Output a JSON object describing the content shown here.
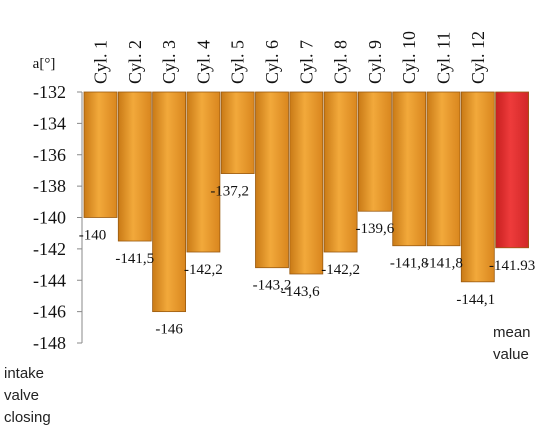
{
  "chart_data": {
    "type": "bar",
    "ylabel": "a[°]",
    "categories": [
      "Cyl. 1",
      "Cyl. 2",
      "Cyl. 3",
      "Cyl. 4",
      "Cyl. 5",
      "Cyl. 6",
      "Cyl. 7",
      "Cyl. 8",
      "Cyl. 9",
      "Cyl. 10",
      "Cyl. 11",
      "Cyl. 12",
      ""
    ],
    "values": [
      -140,
      -141.5,
      -146,
      -142.2,
      -137.2,
      -143.2,
      -143.6,
      -142.2,
      -139.6,
      -141.8,
      -141.8,
      -144.1,
      -141.93
    ],
    "data_labels": [
      "-140",
      "-141,5",
      "-146",
      "-142,2",
      "-137,2",
      "-143,2",
      "-143,6",
      "-142,2",
      "-139,6",
      "-141,8",
      "-141,8",
      "-144,1",
      "-141.93"
    ],
    "ylim": [
      -148,
      -132
    ],
    "yticks": [
      -132,
      -134,
      -136,
      -138,
      -140,
      -142,
      -144,
      -146,
      -148
    ],
    "bar_colors": [
      "#e89a2a",
      "#e89a2a",
      "#e89a2a",
      "#e89a2a",
      "#e89a2a",
      "#e89a2a",
      "#e89a2a",
      "#e89a2a",
      "#e89a2a",
      "#e89a2a",
      "#e89a2a",
      "#e89a2a",
      "#e03030"
    ],
    "grid": false,
    "side_notes": {
      "left": [
        "intake",
        "valve",
        "closing"
      ],
      "right": [
        "mean",
        "value"
      ]
    }
  }
}
